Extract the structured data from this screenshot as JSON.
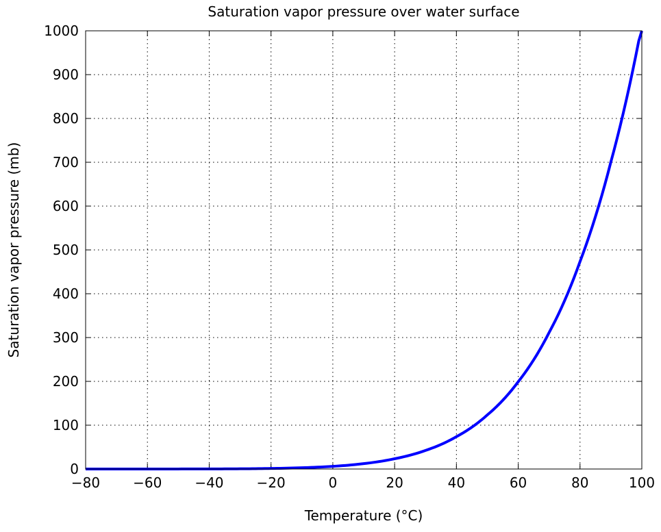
{
  "chart_data": {
    "type": "line",
    "title": "Saturation vapor pressure over water surface",
    "xlabel": "Temperature (°C)",
    "ylabel": "Saturation vapor pressure (mb)",
    "xlim": [
      -80,
      100
    ],
    "ylim": [
      0,
      1000
    ],
    "x_ticks": [
      "−80",
      "−60",
      "−40",
      "−20",
      "0",
      "20",
      "40",
      "60",
      "80",
      "100"
    ],
    "y_ticks": [
      "0",
      "100",
      "200",
      "300",
      "400",
      "500",
      "600",
      "700",
      "800",
      "900",
      "1000"
    ],
    "grid": true,
    "series": [
      {
        "color": "#0000ff",
        "x": [
          -80,
          -70,
          -60,
          -50,
          -40,
          -30,
          -20,
          -10,
          0,
          10,
          20,
          30,
          40,
          50,
          60,
          70,
          80,
          90,
          100
        ],
        "y": [
          0.0,
          0.0,
          0.0,
          0.1,
          0.2,
          0.5,
          1.3,
          2.9,
          6.1,
          12.3,
          23.4,
          42.4,
          73.8,
          123.4,
          199.2,
          311.5,
          473.4,
          701.1,
          1013.3
        ]
      }
    ]
  }
}
